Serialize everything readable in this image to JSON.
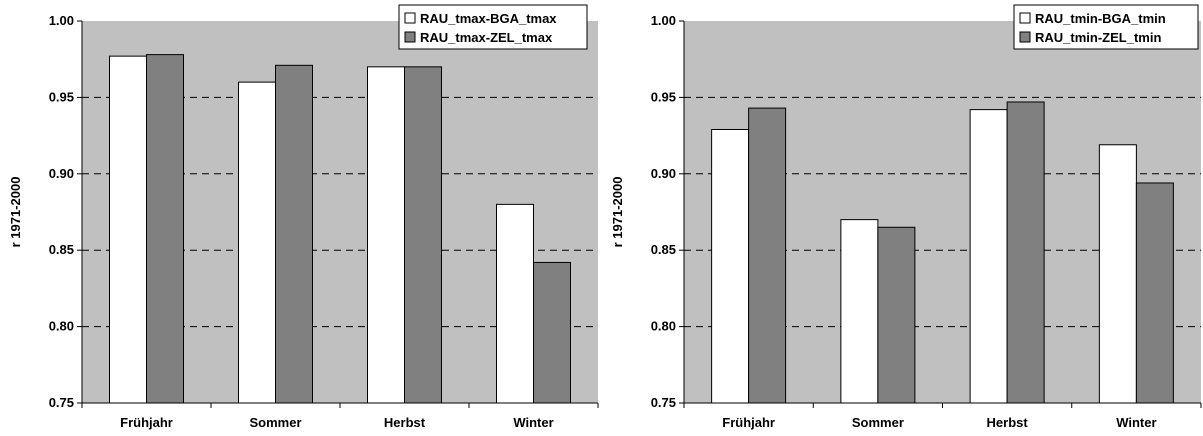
{
  "chart_data": [
    {
      "type": "bar",
      "categories": [
        "Frühjahr",
        "Sommer",
        "Herbst",
        "Winter"
      ],
      "series": [
        {
          "name": "RAU_tmax-BGA_tmax",
          "color": "#ffffff",
          "values": [
            0.977,
            0.96,
            0.97,
            0.88
          ]
        },
        {
          "name": "RAU_tmax-ZEL_tmax",
          "color": "#808080",
          "values": [
            0.978,
            0.971,
            0.97,
            0.842
          ]
        }
      ],
      "ylabel": "r 1971-2000",
      "ylim": [
        0.75,
        1.0
      ],
      "yticks": [
        "0.75",
        "0.80",
        "0.85",
        "0.90",
        "0.95",
        "1.00"
      ],
      "grid": true,
      "legend": "top-right",
      "plot_background": "#c0c0c0"
    },
    {
      "type": "bar",
      "categories": [
        "Frühjahr",
        "Sommer",
        "Herbst",
        "Winter"
      ],
      "series": [
        {
          "name": "RAU_tmin-BGA_tmin",
          "color": "#ffffff",
          "values": [
            0.929,
            0.87,
            0.942,
            0.919
          ]
        },
        {
          "name": "RAU_tmin-ZEL_tmin",
          "color": "#808080",
          "values": [
            0.943,
            0.865,
            0.947,
            0.894
          ]
        }
      ],
      "ylabel": "r 1971-2000",
      "ylim": [
        0.75,
        1.0
      ],
      "yticks": [
        "0.75",
        "0.80",
        "0.85",
        "0.90",
        "0.95",
        "1.00"
      ],
      "grid": true,
      "legend": "top-right",
      "plot_background": "#c0c0c0"
    }
  ]
}
